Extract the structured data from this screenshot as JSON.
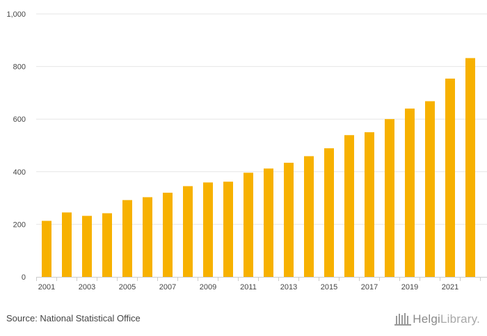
{
  "chart_data": {
    "type": "bar",
    "title": "",
    "xlabel": "",
    "ylabel": "",
    "categories": [
      "2001",
      "2002",
      "2003",
      "2004",
      "2005",
      "2006",
      "2007",
      "2008",
      "2009",
      "2010",
      "2011",
      "2012",
      "2013",
      "2014",
      "2015",
      "2016",
      "2017",
      "2018",
      "2019",
      "2020",
      "2021",
      "2022"
    ],
    "values": [
      213,
      245,
      232,
      242,
      292,
      303,
      320,
      345,
      359,
      362,
      396,
      412,
      434,
      459,
      489,
      539,
      550,
      600,
      640,
      668,
      754,
      832
    ],
    "x_tick_labels": [
      "2001",
      "2003",
      "2005",
      "2007",
      "2009",
      "2011",
      "2013",
      "2015",
      "2017",
      "2019",
      "2021"
    ],
    "y_ticks": [
      0,
      200,
      400,
      600,
      800,
      1000
    ],
    "y_tick_labels": [
      "0",
      "200",
      "400",
      "600",
      "800",
      "1,000"
    ],
    "ylim": [
      0,
      1000
    ],
    "grid": true,
    "bar_color": "#f7b100"
  },
  "footer": {
    "source": "Source: National Statistical Office",
    "logo_main": "Helgi",
    "logo_light": "Library."
  }
}
